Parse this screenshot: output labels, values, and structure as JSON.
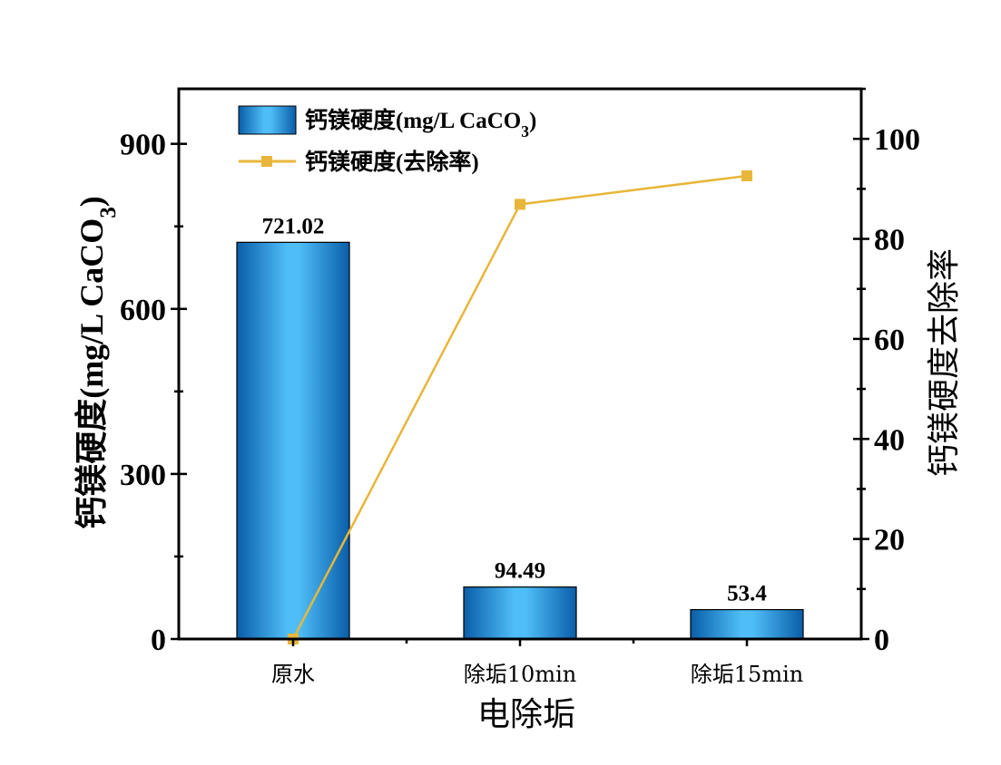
{
  "chart_data": {
    "type": "bar",
    "categories": [
      "原水",
      "除垢10min",
      "除垢15min"
    ],
    "series": [
      {
        "name": "钙镁硬度(mg/L CaCO3)",
        "kind": "bar",
        "axis": "left",
        "values": [
          721.02,
          94.49,
          53.4
        ],
        "labels": [
          "721.02",
          "94.49",
          "53.4"
        ]
      },
      {
        "name": "钙镁硬度(去除率)",
        "kind": "line",
        "axis": "right",
        "values": [
          0,
          86.9,
          92.6
        ]
      }
    ],
    "xlabel": "电除垢",
    "ylabel": "钙镁硬度(mg/L CaCO3)",
    "ylabel_right": "钙镁硬度去除率",
    "ylim": [
      0,
      1000
    ],
    "ylim_right": [
      0,
      110
    ],
    "yticks": [
      0,
      300,
      600,
      900
    ],
    "yticks_right": [
      0,
      20,
      40,
      60,
      80,
      100
    ],
    "legend_position": "top-left",
    "grid": false,
    "colors": {
      "bar_dark": "#0a5ea8",
      "bar_light": "#4fbef8",
      "line": "#e8b63a"
    }
  }
}
